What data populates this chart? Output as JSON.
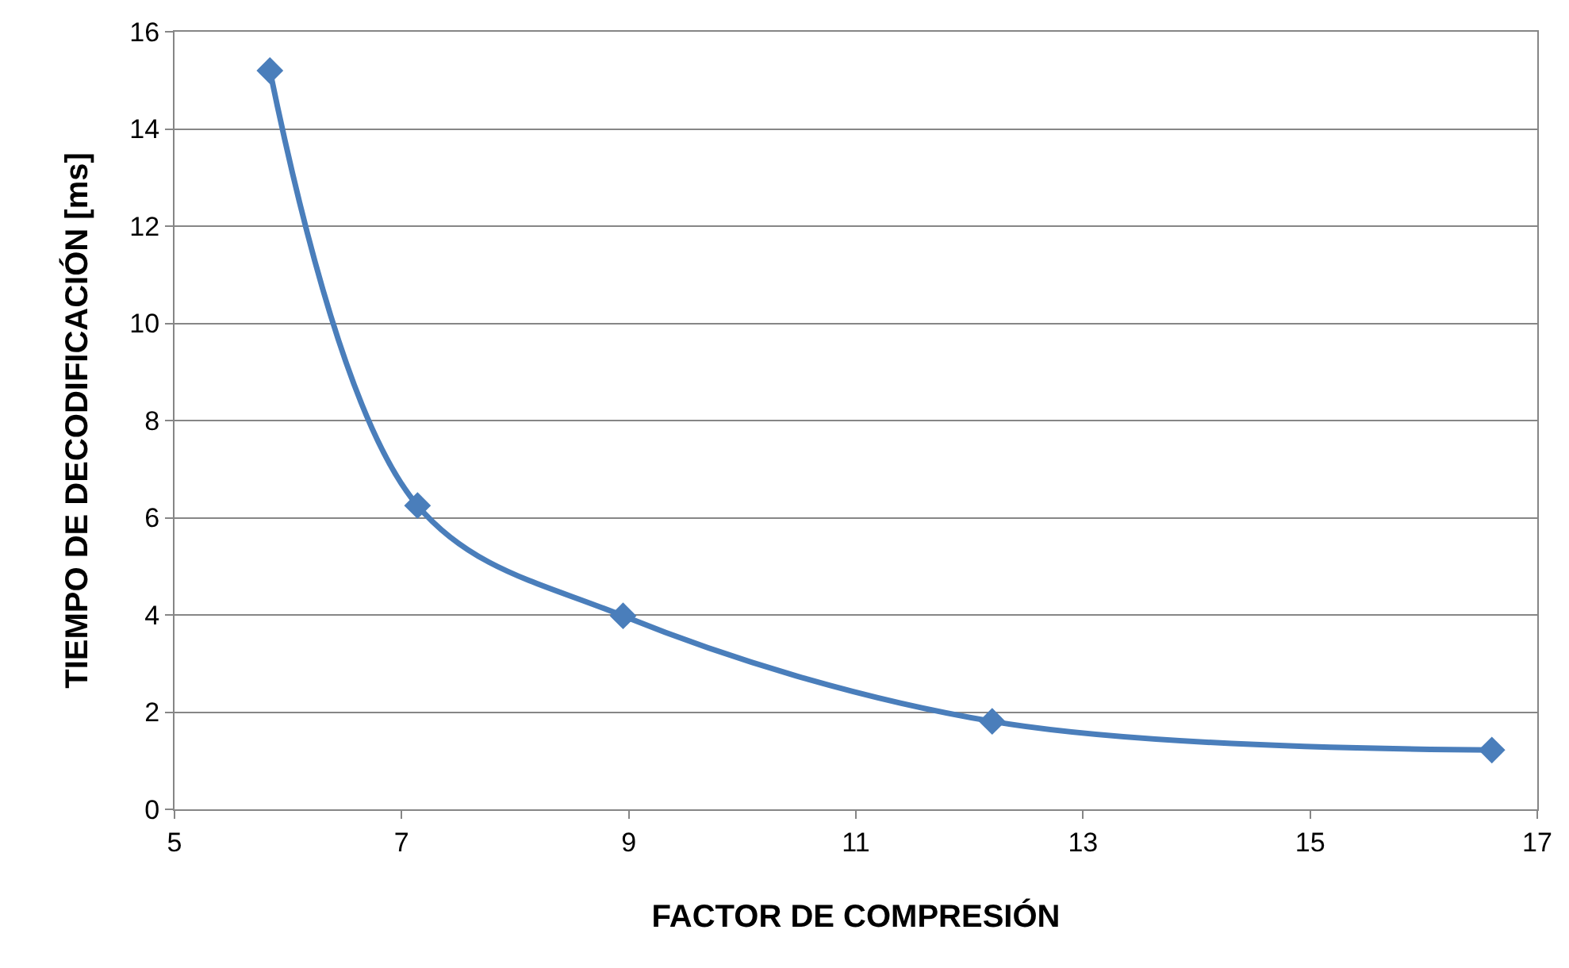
{
  "chart_data": {
    "type": "line",
    "xlabel": "FACTOR DE COMPRESIÓN",
    "ylabel": "TIEMPO DE DECODIFICACIÓN [ms]",
    "x": [
      5.84,
      7.14,
      8.95,
      12.2,
      16.6
    ],
    "series": [
      {
        "color": "#4a7ebb",
        "values": [
          15.2,
          6.25,
          3.98,
          1.81,
          1.22
        ]
      }
    ],
    "xlim": [
      5,
      17
    ],
    "xticks": [
      5,
      7,
      9,
      11,
      13,
      15,
      17
    ],
    "ylim": [
      0,
      16
    ],
    "yticks": [
      0,
      2,
      4,
      6,
      8,
      10,
      12,
      14,
      16
    ],
    "grid": "y",
    "legend": false,
    "marker": "diamond",
    "line_style": "solid"
  }
}
